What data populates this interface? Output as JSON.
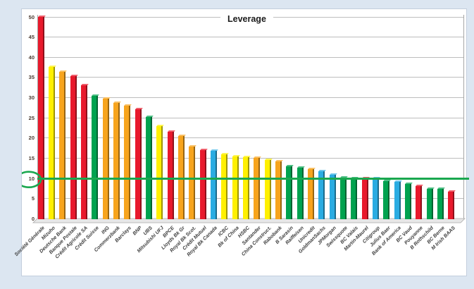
{
  "chart_data": {
    "type": "bar",
    "title": "Leverage",
    "xlabel": "",
    "ylabel": "",
    "ylim": [
      0,
      50
    ],
    "yticks": [
      0,
      5,
      10,
      15,
      20,
      25,
      30,
      35,
      40,
      45,
      50
    ],
    "grid": true,
    "legend": "none",
    "style": "3d-columns",
    "reference_line": {
      "value": 10,
      "color": "#1aa74f",
      "note": "horizontal green target line across full plot width"
    },
    "annotation_circle": {
      "around": "y-axis tick label 10",
      "color": "#1aa74f"
    },
    "palette": {
      "red": "#e8192c",
      "yellow": "#fff000",
      "orange": "#f7a41d",
      "green": "#00a24f",
      "blue": "#2aace2"
    },
    "bars": [
      {
        "label": "Société Générale",
        "value": 50.0,
        "color": "red"
      },
      {
        "label": "Mizuho",
        "value": 37.6,
        "color": "yellow"
      },
      {
        "label": "Deutsche Bank",
        "value": 36.3,
        "color": "orange"
      },
      {
        "label": "Banque Postale",
        "value": 35.2,
        "color": "red"
      },
      {
        "label": "Crédit Agricole SA",
        "value": 32.9,
        "color": "red"
      },
      {
        "label": "Crédit Suisse",
        "value": 30.4,
        "color": "green"
      },
      {
        "label": "ING",
        "value": 29.7,
        "color": "orange"
      },
      {
        "label": "Commerzbank",
        "value": 28.6,
        "color": "orange"
      },
      {
        "label": "Barclays",
        "value": 27.9,
        "color": "orange"
      },
      {
        "label": "BNP",
        "value": 27.1,
        "color": "red"
      },
      {
        "label": "UBS",
        "value": 25.2,
        "color": "green"
      },
      {
        "label": "Mitsubishi UFJ",
        "value": 22.8,
        "color": "yellow"
      },
      {
        "label": "BPCE",
        "value": 21.4,
        "color": "red"
      },
      {
        "label": "Lloyds Bk Gr",
        "value": 20.4,
        "color": "orange"
      },
      {
        "label": "Royal Bk Scot.",
        "value": 17.8,
        "color": "orange"
      },
      {
        "label": "Crédit Mutuel",
        "value": 16.9,
        "color": "red"
      },
      {
        "label": "Royal Bk Canada",
        "value": 16.7,
        "color": "blue"
      },
      {
        "label": "ICBC",
        "value": 15.8,
        "color": "yellow"
      },
      {
        "label": "Bk of China",
        "value": 15.4,
        "color": "yellow"
      },
      {
        "label": "HSBC",
        "value": 15.1,
        "color": "yellow"
      },
      {
        "label": "Santander",
        "value": 15.0,
        "color": "orange"
      },
      {
        "label": "China Construct.",
        "value": 14.4,
        "color": "yellow"
      },
      {
        "label": "Rabobank",
        "value": 14.1,
        "color": "orange"
      },
      {
        "label": "B Sarasin",
        "value": 13.0,
        "color": "green"
      },
      {
        "label": "Raiffeisen",
        "value": 12.6,
        "color": "green"
      },
      {
        "label": "Unicredit",
        "value": 12.3,
        "color": "orange"
      },
      {
        "label": "GoldmanSachs",
        "value": 11.7,
        "color": "blue"
      },
      {
        "label": "JPMorgan",
        "value": 10.9,
        "color": "blue"
      },
      {
        "label": "Swissquote",
        "value": 10.2,
        "color": "green"
      },
      {
        "label": "BC Valais",
        "value": 10.0,
        "color": "green"
      },
      {
        "label": "Martin-Maurel",
        "value": 10.0,
        "color": "red"
      },
      {
        "label": "Citigroup",
        "value": 9.9,
        "color": "blue"
      },
      {
        "label": "Julius Baer",
        "value": 9.2,
        "color": "green"
      },
      {
        "label": "Bank of America",
        "value": 9.1,
        "color": "blue"
      },
      {
        "label": "BC Vaud",
        "value": 8.5,
        "color": "green"
      },
      {
        "label": "Pouyanne",
        "value": 8.1,
        "color": "red"
      },
      {
        "label": "B Rothschild",
        "value": 7.4,
        "color": "green"
      },
      {
        "label": "BC Berne",
        "value": 7.3,
        "color": "green"
      },
      {
        "label": "M Irish BAAS",
        "value": 6.6,
        "color": "red"
      }
    ]
  },
  "page": {
    "background_color": "#dce6f1",
    "chart_background": "#ffffff"
  }
}
